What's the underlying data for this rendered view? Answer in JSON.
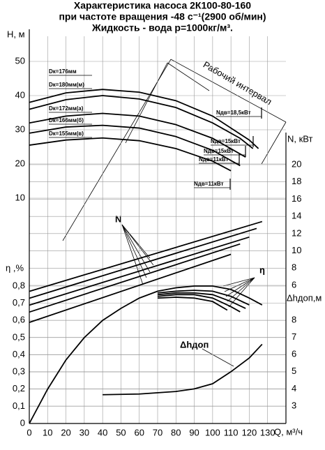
{
  "chart_data": {
    "type": "line",
    "title": [
      "Характеристика насоса 2К100-80-160",
      "при частоте вращения -48 с⁻¹(2900 об/мин)",
      "Жидкость - вода р=1000кг/м³."
    ],
    "x_label": "Q, м³/ч",
    "y_label": "H, м",
    "y2_label": "N, кВт",
    "eta_label": "η ,%",
    "y3_label": "Δhдоп,м",
    "xlim": [
      0,
      140
    ],
    "xticks": [
      0,
      10,
      20,
      30,
      40,
      50,
      60,
      70,
      80,
      90,
      100,
      110,
      120,
      130
    ],
    "ylim": [
      10,
      50
    ],
    "yticks": [
      10,
      20,
      30,
      40,
      50
    ],
    "eta_lim": [
      0,
      0.8
    ],
    "eta_ticks": [
      0,
      {
        "value": 0.1,
        "label": "0,1"
      },
      {
        "value": 0.2,
        "label": "0,2"
      },
      {
        "value": 0.3,
        "label": "0,3"
      },
      {
        "value": 0.4,
        "label": "0,4"
      },
      {
        "value": 0.5,
        "label": "0,5"
      },
      {
        "value": 0.6,
        "label": "0,6"
      },
      {
        "value": 0.7,
        "label": "0,7"
      },
      {
        "value": 0.8,
        "label": "0,8"
      }
    ],
    "y2lim": [
      6,
      20
    ],
    "y2ticks": [
      6,
      8,
      10,
      12,
      14,
      16,
      18,
      20
    ],
    "y3lim": [
      3,
      8
    ],
    "y3ticks": [
      3,
      4,
      5,
      6,
      7,
      8
    ],
    "grid": true,
    "series": [
      {
        "name": "Dк=176мм",
        "axis": "y",
        "color": "#000",
        "x": [
          0,
          20,
          40,
          60,
          80,
          100,
          120,
          125
        ],
        "values": [
          38,
          40.8,
          41.8,
          41,
          38.5,
          34,
          27,
          24.5
        ]
      },
      {
        "name": "Dк=180мм(м)",
        "axis": "y",
        "color": "#000",
        "x": [
          0,
          20,
          40,
          60,
          80,
          100,
          115,
          122
        ],
        "values": [
          36,
          38.8,
          40,
          39,
          36.5,
          32,
          27.5,
          24.5
        ]
      },
      {
        "name": "Dк=172мм(а)",
        "axis": "y",
        "color": "#000",
        "x": [
          0,
          20,
          40,
          60,
          80,
          100,
          118
        ],
        "values": [
          32,
          34,
          34.8,
          34,
          31.5,
          27.5,
          22
        ]
      },
      {
        "name": "Dк=166мм(б)",
        "axis": "y",
        "color": "#000",
        "x": [
          0,
          20,
          40,
          60,
          80,
          100,
          115
        ],
        "values": [
          29,
          30.8,
          31.3,
          30.5,
          28,
          24,
          19.5
        ]
      },
      {
        "name": "Dк=155мм(в)",
        "axis": "y",
        "color": "#000",
        "x": [
          0,
          20,
          40,
          60,
          80,
          100,
          110
        ],
        "values": [
          25.5,
          27,
          27.6,
          26.8,
          24.5,
          20.8,
          18
        ]
      },
      {
        "axis": "y2",
        "color": "#000",
        "x": [
          0,
          127
        ],
        "values": [
          5.3,
          13.4
        ]
      },
      {
        "axis": "y2",
        "color": "#000",
        "x": [
          0,
          124
        ],
        "values": [
          4.5,
          12.6
        ]
      },
      {
        "axis": "y2",
        "color": "#000",
        "x": [
          0,
          120
        ],
        "values": [
          3.7,
          11.6
        ]
      },
      {
        "axis": "y2",
        "color": "#000",
        "x": [
          0,
          115
        ],
        "values": [
          2.9,
          10.8
        ]
      },
      {
        "axis": "y2",
        "color": "#000",
        "x": [
          0,
          110
        ],
        "values": [
          1.7,
          9.6
        ]
      },
      {
        "axis": "eta",
        "color": "#000",
        "x": [
          0,
          10,
          20,
          30,
          40,
          50,
          60,
          70,
          80,
          90,
          100,
          110,
          120,
          127
        ],
        "values": [
          0,
          0.2,
          0.37,
          0.5,
          0.6,
          0.67,
          0.73,
          0.77,
          0.79,
          0.8,
          0.8,
          0.78,
          0.73,
          0.69
        ]
      },
      {
        "axis": "eta",
        "color": "#000",
        "x": [
          70,
          80,
          90,
          100,
          110,
          120
        ],
        "values": [
          0.76,
          0.77,
          0.775,
          0.77,
          0.74,
          0.69
        ]
      },
      {
        "axis": "eta",
        "color": "#000",
        "x": [
          70,
          80,
          90,
          100,
          110,
          118
        ],
        "values": [
          0.75,
          0.76,
          0.76,
          0.75,
          0.71,
          0.67
        ]
      },
      {
        "axis": "eta",
        "color": "#000",
        "x": [
          70,
          80,
          90,
          100,
          110,
          115
        ],
        "values": [
          0.74,
          0.75,
          0.75,
          0.73,
          0.68,
          0.65
        ]
      },
      {
        "axis": "eta",
        "color": "#000",
        "x": [
          70,
          80,
          90,
          100,
          108
        ],
        "values": [
          0.73,
          0.735,
          0.73,
          0.71,
          0.66
        ]
      },
      {
        "axis": "y3",
        "color": "#000",
        "x": [
          40,
          60,
          80,
          90,
          100,
          110,
          120,
          127
        ],
        "values": [
          3.66,
          3.7,
          3.85,
          4.0,
          4.3,
          5.0,
          5.8,
          6.6
        ]
      }
    ],
    "annotations": {
      "n": "N",
      "eta": "η",
      "dh": "Δhдоп",
      "interval": "Рабочий интервал",
      "motors": [
        "Nдв=18,5кВт",
        "Nдв=15кВт",
        "Nдв=15кВт",
        "Nдв=11кВт",
        "Nдв=11кВт"
      ]
    }
  }
}
